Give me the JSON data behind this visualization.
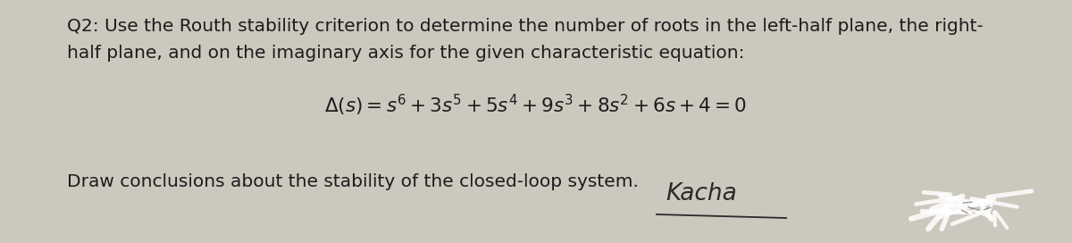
{
  "background_color": "#cdc8be",
  "text_line1": "Q2: Use the Routh stability criterion to determine the number of roots in the left-half plane, the right-",
  "text_line2": "half plane, and on the imaginary axis for the given characteristic equation:",
  "equation": "$\\Delta(s) = s^6 + 3s^5 + 5s^4 + 9s^3 + 8s^2 + 6s + 4 = 0$",
  "text_line3": "Draw conclusions about the stability of the closed-loop system.",
  "signature": "Kacha",
  "main_fontsize": 14.5,
  "eq_fontsize": 15.5,
  "text_color": "#1c1c1c",
  "fig_width": 12.0,
  "fig_height": 2.72
}
